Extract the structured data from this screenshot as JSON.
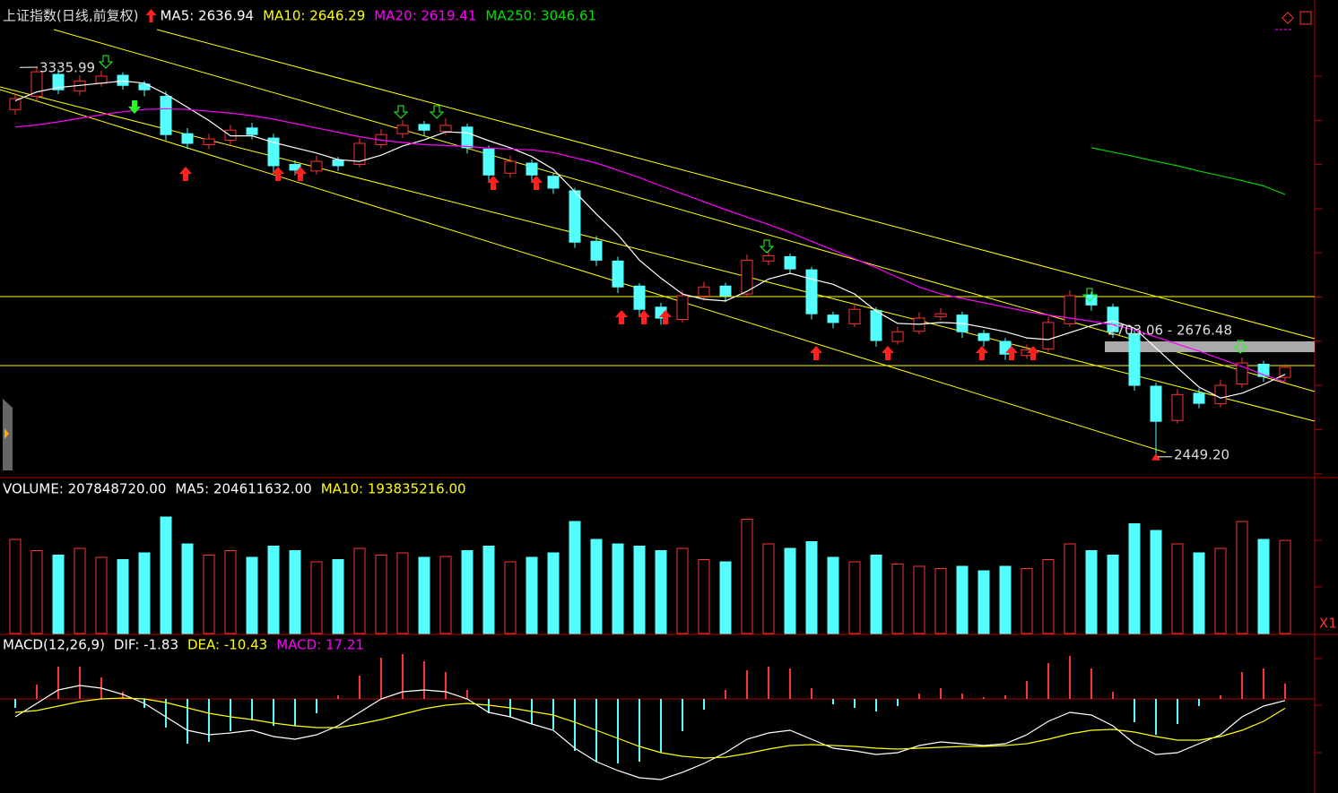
{
  "chart_data": {
    "type": "candlestick",
    "title": "上证指数(日线,前复权)",
    "indicators": [
      {
        "label": "MA5: 2636.94",
        "color": "#ffffff"
      },
      {
        "label": "MA10: 2646.29",
        "color": "#ffff00"
      },
      {
        "label": "MA20: 2619.41",
        "color": "#ff00ff"
      },
      {
        "label": "MA250: 3046.61",
        "color": "#00e000"
      }
    ],
    "ylim": [
      2408,
      3418
    ],
    "up_color": "#ff3232",
    "down_color": "#54ffff",
    "ohlc": [
      [
        3240,
        3278,
        3228,
        3265
      ],
      [
        3270,
        3335.99,
        3260,
        3326
      ],
      [
        3320,
        3332,
        3275,
        3285
      ],
      [
        3282,
        3318,
        3272,
        3305
      ],
      [
        3300,
        3328,
        3292,
        3316
      ],
      [
        3318,
        3325,
        3285,
        3295
      ],
      [
        3298,
        3305,
        3270,
        3285
      ],
      [
        3270,
        3282,
        3170,
        3183
      ],
      [
        3185,
        3198,
        3150,
        3163
      ],
      [
        3160,
        3185,
        3150,
        3173
      ],
      [
        3170,
        3205,
        3160,
        3193
      ],
      [
        3198,
        3210,
        3172,
        3183
      ],
      [
        3175,
        3185,
        3098,
        3112
      ],
      [
        3115,
        3125,
        3090,
        3102
      ],
      [
        3100,
        3135,
        3092,
        3122
      ],
      [
        3125,
        3132,
        3100,
        3112
      ],
      [
        3115,
        3175,
        3108,
        3163
      ],
      [
        3160,
        3195,
        3152,
        3183
      ],
      [
        3185,
        3216,
        3175,
        3204
      ],
      [
        3206,
        3214,
        3180,
        3193
      ],
      [
        3190,
        3220,
        3182,
        3204
      ],
      [
        3200,
        3208,
        3140,
        3153
      ],
      [
        3150,
        3158,
        3078,
        3091
      ],
      [
        3095,
        3135,
        3085,
        3122
      ],
      [
        3118,
        3126,
        3078,
        3091
      ],
      [
        3088,
        3095,
        3048,
        3061
      ],
      [
        3055,
        3062,
        2925,
        2938
      ],
      [
        2940,
        2952,
        2884,
        2897
      ],
      [
        2895,
        2905,
        2822,
        2836
      ],
      [
        2838,
        2845,
        2770,
        2785
      ],
      [
        2790,
        2800,
        2750,
        2765
      ],
      [
        2762,
        2828,
        2755,
        2816
      ],
      [
        2815,
        2848,
        2805,
        2836
      ],
      [
        2838,
        2846,
        2802,
        2816
      ],
      [
        2820,
        2910,
        2812,
        2897
      ],
      [
        2895,
        2920,
        2885,
        2907
      ],
      [
        2905,
        2912,
        2865,
        2877
      ],
      [
        2875,
        2882,
        2762,
        2775
      ],
      [
        2772,
        2780,
        2742,
        2755
      ],
      [
        2752,
        2798,
        2745,
        2785
      ],
      [
        2782,
        2790,
        2700,
        2714
      ],
      [
        2712,
        2746,
        2705,
        2734
      ],
      [
        2735,
        2778,
        2728,
        2765
      ],
      [
        2768,
        2788,
        2760,
        2775
      ],
      [
        2772,
        2780,
        2720,
        2734
      ],
      [
        2730,
        2738,
        2700,
        2714
      ],
      [
        2712,
        2720,
        2670,
        2683
      ],
      [
        2680,
        2705,
        2672,
        2693
      ],
      [
        2695,
        2768,
        2688,
        2755
      ],
      [
        2752,
        2828,
        2745,
        2816
      ],
      [
        2818,
        2825,
        2782,
        2795
      ],
      [
        2790,
        2798,
        2720,
        2734
      ],
      [
        2730,
        2738,
        2600,
        2612
      ],
      [
        2610,
        2618,
        2449.2,
        2530
      ],
      [
        2532,
        2603,
        2525,
        2591
      ],
      [
        2594,
        2605,
        2560,
        2571
      ],
      [
        2570,
        2625,
        2562,
        2612
      ],
      [
        2615,
        2675,
        2606,
        2663
      ],
      [
        2660,
        2668,
        2620,
        2632
      ],
      [
        2630,
        2660,
        2622,
        2653
      ]
    ],
    "ma_lines": [
      {
        "color": "#ffffff",
        "values": [
          3260,
          3280,
          3290,
          3295,
          3300,
          3305,
          3300,
          3275,
          3245,
          3215,
          3180,
          3180,
          3165,
          3153,
          3141,
          3126,
          3122,
          3136,
          3157,
          3171,
          3189,
          3187,
          3169,
          3153,
          3133,
          3104,
          3053,
          3002,
          2955,
          2897,
          2856,
          2820,
          2808,
          2804,
          2826,
          2854,
          2867,
          2854,
          2842,
          2820,
          2781,
          2753,
          2751,
          2755,
          2753,
          2744,
          2734,
          2720,
          2716,
          2732,
          2748,
          2759,
          2742,
          2697,
          2652,
          2608,
          2583,
          2594,
          2614,
          2636.94
        ]
      },
      {
        "color": "#ff00ff",
        "values": [
          3200,
          3205,
          3212,
          3220,
          3228,
          3235,
          3240,
          3242,
          3240,
          3236,
          3232,
          3226,
          3218,
          3208,
          3198,
          3188,
          3178,
          3170,
          3165,
          3160,
          3158,
          3156,
          3152,
          3150,
          3148,
          3142,
          3130,
          3118,
          3102,
          3085,
          3066,
          3048,
          3030,
          3012,
          2995,
          2978,
          2960,
          2940,
          2920,
          2900,
          2880,
          2858,
          2836,
          2820,
          2810,
          2800,
          2790,
          2780,
          2772,
          2765,
          2758,
          2750,
          2738,
          2722,
          2706,
          2690,
          2672,
          2655,
          2636,
          2619.41
        ]
      },
      {
        "color": "#00d000",
        "values": [
          null,
          null,
          null,
          null,
          null,
          null,
          null,
          null,
          null,
          null,
          null,
          null,
          null,
          null,
          null,
          null,
          null,
          null,
          null,
          null,
          null,
          null,
          null,
          null,
          null,
          null,
          null,
          null,
          null,
          null,
          null,
          null,
          null,
          null,
          null,
          null,
          null,
          null,
          null,
          null,
          null,
          null,
          null,
          null,
          null,
          null,
          null,
          null,
          null,
          null,
          3153,
          3143,
          3133,
          3122,
          3112,
          3100,
          3089,
          3078,
          3066,
          3046.61
        ]
      }
    ],
    "annotations": [
      "3335.99",
      "2449.20",
      "2703.06 - 2676.48"
    ],
    "volume": {
      "header": [
        {
          "label": "VOLUME: 207848720.00",
          "color": "#ffffff"
        },
        {
          "label": "MA5: 204611632.00",
          "color": "#ffffff"
        },
        {
          "label": "MA10: 193835216.00",
          "color": "#ffff00"
        }
      ],
      "ylim": [
        0,
        300000000
      ],
      "scale_label": "X1",
      "values": [
        210000000,
        185000000,
        175000000,
        190000000,
        170000000,
        165000000,
        180000000,
        260000000,
        200000000,
        175000000,
        185000000,
        170000000,
        195000000,
        185000000,
        160000000,
        165000000,
        190000000,
        175000000,
        180000000,
        170000000,
        172000000,
        185000000,
        195000000,
        160000000,
        170000000,
        180000000,
        250000000,
        210000000,
        200000000,
        195000000,
        185000000,
        190000000,
        165000000,
        160000000,
        255000000,
        200000000,
        190000000,
        205000000,
        170000000,
        160000000,
        175000000,
        155000000,
        150000000,
        145000000,
        150000000,
        140000000,
        150000000,
        145000000,
        165000000,
        200000000,
        185000000,
        175000000,
        245000000,
        230000000,
        200000000,
        180000000,
        190000000,
        250000000,
        210000000,
        207848720
      ]
    },
    "macd": {
      "header": [
        {
          "label": "MACD(12,26,9)",
          "color": "#ffffff"
        },
        {
          "label": "DIF: -1.83",
          "color": "#ffffff"
        },
        {
          "label": "DEA: -10.43",
          "color": "#ffff00"
        },
        {
          "label": "MACD: 17.21",
          "color": "#ff00ff"
        }
      ],
      "ylim": [
        -100,
        60
      ],
      "dif_color": "#ffffff",
      "dea_color": "#ffff00",
      "hist": [
        -10,
        16,
        36,
        36,
        24,
        8,
        -10,
        -32,
        -50,
        -48,
        -36,
        -24,
        -30,
        -30,
        -16,
        4,
        26,
        46,
        50,
        42,
        30,
        10,
        -16,
        -20,
        -28,
        -34,
        -58,
        -70,
        -72,
        -70,
        -60,
        -36,
        -12,
        10,
        32,
        36,
        34,
        12,
        -6,
        -10,
        -14,
        -8,
        6,
        12,
        6,
        2,
        4,
        20,
        40,
        48,
        34,
        8,
        -26,
        -40,
        -28,
        -8,
        4,
        30,
        34,
        17.21
      ],
      "dif": [
        -20,
        -5,
        10,
        15,
        12,
        5,
        -5,
        -20,
        -35,
        -40,
        -38,
        -35,
        -42,
        -45,
        -40,
        -30,
        -15,
        0,
        8,
        10,
        8,
        0,
        -15,
        -20,
        -28,
        -35,
        -55,
        -70,
        -80,
        -88,
        -90,
        -82,
        -72,
        -60,
        -45,
        -38,
        -35,
        -45,
        -55,
        -58,
        -62,
        -60,
        -52,
        -48,
        -50,
        -52,
        -50,
        -40,
        -25,
        -15,
        -18,
        -30,
        -50,
        -62,
        -60,
        -50,
        -40,
        -20,
        -8,
        -1.83
      ],
      "dea": [
        -15,
        -13,
        -8,
        -3,
        0,
        1,
        0,
        -4,
        -10,
        -16,
        -20,
        -23,
        -27,
        -30,
        -32,
        -32,
        -28,
        -23,
        -17,
        -11,
        -7,
        -5,
        -7,
        -10,
        -14,
        -18,
        -26,
        -35,
        -44,
        -53,
        -60,
        -64,
        -66,
        -65,
        -61,
        -56,
        -52,
        -51,
        -52,
        -53,
        -55,
        -56,
        -55,
        -54,
        -53,
        -53,
        -52,
        -50,
        -45,
        -39,
        -35,
        -34,
        -37,
        -42,
        -46,
        -46,
        -42,
        -35,
        -25,
        -10.43
      ]
    }
  }
}
